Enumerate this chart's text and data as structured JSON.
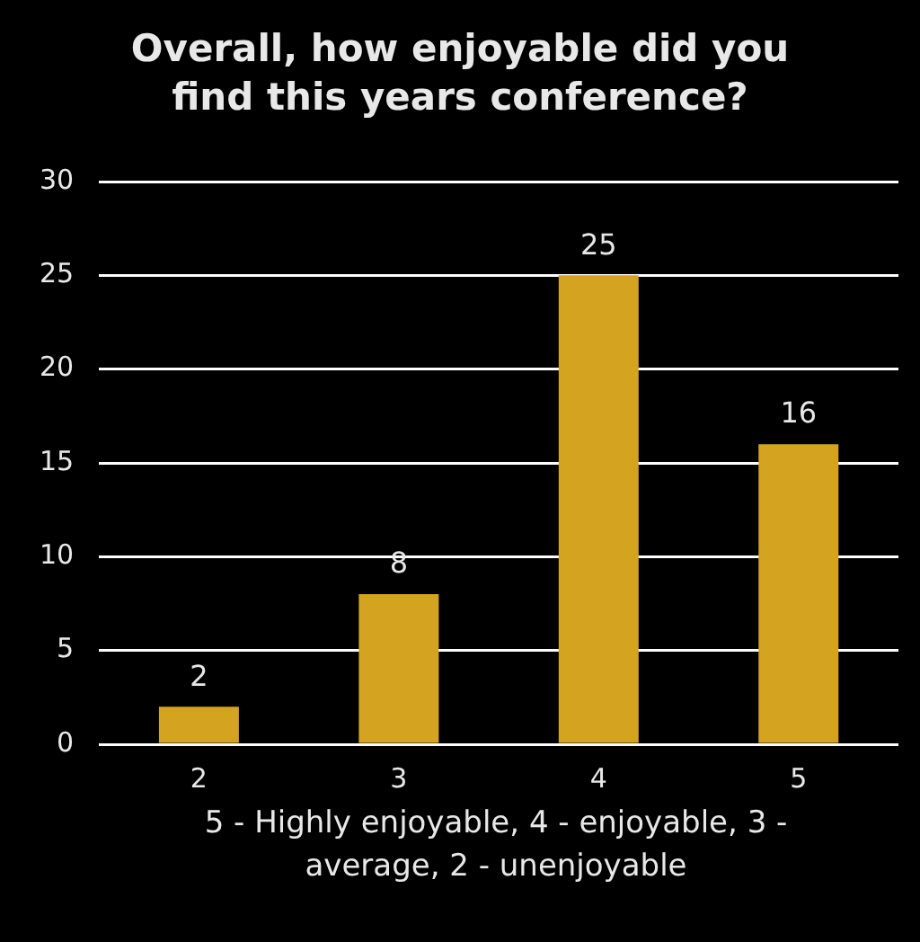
{
  "chart_data": {
    "type": "bar",
    "title": "Overall, how enjoyable did you find this years conference?",
    "xlabel": "5 - Highly enjoyable, 4 - enjoyable, 3 - average, 2 - unenjoyable",
    "categories": [
      "2",
      "3",
      "4",
      "5"
    ],
    "values": [
      2,
      8,
      25,
      16
    ],
    "color": "#d4a420",
    "ylim": [
      0,
      30
    ],
    "yticks": [
      0,
      5,
      10,
      15,
      20,
      25,
      30
    ],
    "grid": "y",
    "legend": false,
    "data_labels": true
  }
}
